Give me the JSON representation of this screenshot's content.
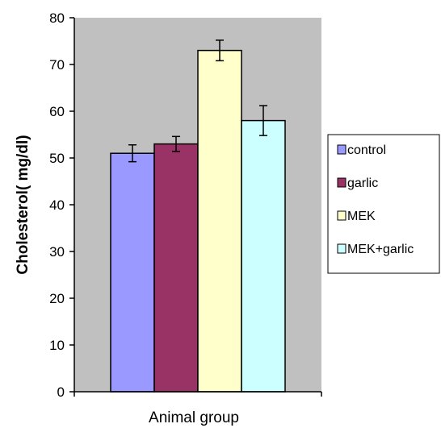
{
  "chart_data": {
    "type": "bar",
    "title": "",
    "xlabel": "Animal group",
    "ylabel": "Cholesterol( mg/dl)",
    "ylim": [
      0,
      80
    ],
    "yticks": [
      0,
      10,
      20,
      30,
      40,
      50,
      60,
      70,
      80
    ],
    "categories": [
      ""
    ],
    "series": [
      {
        "name": "control",
        "values": [
          51
        ],
        "error": [
          1.8
        ],
        "color": "#9999FF"
      },
      {
        "name": "garlic",
        "values": [
          53
        ],
        "error": [
          1.6
        ],
        "color": "#993366"
      },
      {
        "name": "MEK",
        "values": [
          73
        ],
        "error": [
          2.2
        ],
        "color": "#FFFFCC"
      },
      {
        "name": "MEK+garlic",
        "values": [
          58
        ],
        "error": [
          3.2
        ],
        "color": "#CCFFFF"
      }
    ],
    "plot_background": "#C0C0C0",
    "grid": false,
    "legend": "right"
  }
}
